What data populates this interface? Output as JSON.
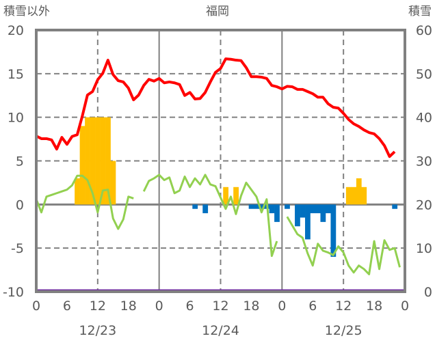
{
  "chart_data": {
    "type": "bar+line",
    "title": "福岡",
    "left_axis_label": "積雪以外",
    "right_axis_label": "積雪",
    "left_ylim": [
      -10,
      20
    ],
    "left_ticks": [
      20,
      15,
      10,
      5,
      0,
      -5,
      -10
    ],
    "right_ylim": [
      0,
      60
    ],
    "right_ticks": [
      60,
      50,
      40,
      30,
      20,
      10,
      0
    ],
    "x_hours_range": [
      0,
      72
    ],
    "x_tick_labels": [
      "0",
      "6",
      "12",
      "18",
      "0",
      "6",
      "12",
      "18",
      "0",
      "6",
      "12",
      "18",
      "0"
    ],
    "date_labels": [
      {
        "hour": 12,
        "label": "12/23"
      },
      {
        "hour": 36,
        "label": "12/24"
      },
      {
        "hour": 60,
        "label": "12/25"
      }
    ],
    "grid": "dashed horizontal, solid vertical at day boundaries, dashed vertical at 12h",
    "colors": {
      "snow_depth": "#ff0000",
      "green": "#92d050",
      "positive_bar": "#ffc000",
      "negative_bar": "#0070c0",
      "purple": "#7030a0",
      "axis": "#808080"
    },
    "snow_depth_right_axis": [
      35.7,
      35.1,
      35.1,
      34.8,
      32.7,
      35.4,
      33.8,
      35.6,
      36.0,
      40.3,
      45.1,
      45.9,
      48.6,
      50.1,
      53.1,
      49.8,
      48.4,
      48.1,
      46.7,
      44.0,
      45.1,
      47.3,
      48.7,
      48.3,
      48.9,
      47.9,
      48.1,
      47.9,
      47.5,
      45.0,
      45.7,
      44.2,
      44.3,
      45.7,
      48.1,
      50.3,
      51.2,
      53.4,
      53.3,
      53.1,
      53.0,
      51.4,
      49.3,
      49.3,
      49.2,
      48.9,
      47.3,
      47.0,
      46.5,
      47.1,
      47.0,
      46.4,
      46.4,
      45.9,
      45.4,
      44.6,
      44.6,
      43.1,
      42.3,
      42.1,
      40.9,
      39.5,
      38.5,
      37.9,
      37.1,
      36.5,
      36.2,
      35.1,
      33.5,
      31.0,
      32.1
    ],
    "green_left_axis": [
      0.6,
      -0.9,
      0.9,
      1.1,
      1.3,
      1.5,
      1.7,
      2.2,
      3.3,
      3.3,
      2.8,
      1.3,
      -0.9,
      1.6,
      1.7,
      -1.6,
      -2.8,
      -1.7,
      0.9,
      0.7,
      null,
      1.5,
      2.7,
      3.0,
      3.4,
      2.8,
      3.1,
      1.3,
      1.6,
      3.2,
      2.0,
      3.0,
      2.3,
      3.4,
      2.3,
      2.1,
      0.8,
      -0.5,
      0.9,
      -1.1,
      1.0,
      2.5,
      1.7,
      0.9,
      -0.9,
      0.6,
      -5.9,
      -4.2,
      null,
      -1.4,
      -2.4,
      -3.4,
      -3.8,
      -5.6,
      -7.0,
      -4.5,
      -5.3,
      -5.5,
      -5.8,
      -4.8,
      -5.5,
      -7.0,
      -7.8,
      -7.0,
      -7.4,
      -8.0,
      -4.2,
      -7.4,
      -4.1,
      -5.2,
      -5.0,
      -7.2
    ],
    "bars_left_axis": [
      {
        "hour": 8,
        "value": 3
      },
      {
        "hour": 9,
        "value": 9
      },
      {
        "hour": 10,
        "value": 10
      },
      {
        "hour": 11,
        "value": 10
      },
      {
        "hour": 12,
        "value": 10
      },
      {
        "hour": 13,
        "value": 10
      },
      {
        "hour": 14,
        "value": 10
      },
      {
        "hour": 15,
        "value": 5
      },
      {
        "hour": 31,
        "value": -0.5
      },
      {
        "hour": 33,
        "value": -1
      },
      {
        "hour": 37,
        "value": 2
      },
      {
        "hour": 39,
        "value": 2
      },
      {
        "hour": 42,
        "value": -0.5
      },
      {
        "hour": 43,
        "value": -0.5
      },
      {
        "hour": 44,
        "value": -0.5
      },
      {
        "hour": 45,
        "value": -0.5
      },
      {
        "hour": 46,
        "value": -1
      },
      {
        "hour": 47,
        "value": -2
      },
      {
        "hour": 49,
        "value": -0.5
      },
      {
        "hour": 51,
        "value": -2.5
      },
      {
        "hour": 52,
        "value": -1.5
      },
      {
        "hour": 53,
        "value": -4
      },
      {
        "hour": 54,
        "value": -1
      },
      {
        "hour": 55,
        "value": -1
      },
      {
        "hour": 56,
        "value": -2
      },
      {
        "hour": 57,
        "value": -1
      },
      {
        "hour": 58,
        "value": -6
      },
      {
        "hour": 61,
        "value": 2
      },
      {
        "hour": 62,
        "value": 2
      },
      {
        "hour": 63,
        "value": 3
      },
      {
        "hour": 64,
        "value": 2
      },
      {
        "hour": 70,
        "value": -0.5
      }
    ],
    "purple_right_axis_value": 0
  }
}
